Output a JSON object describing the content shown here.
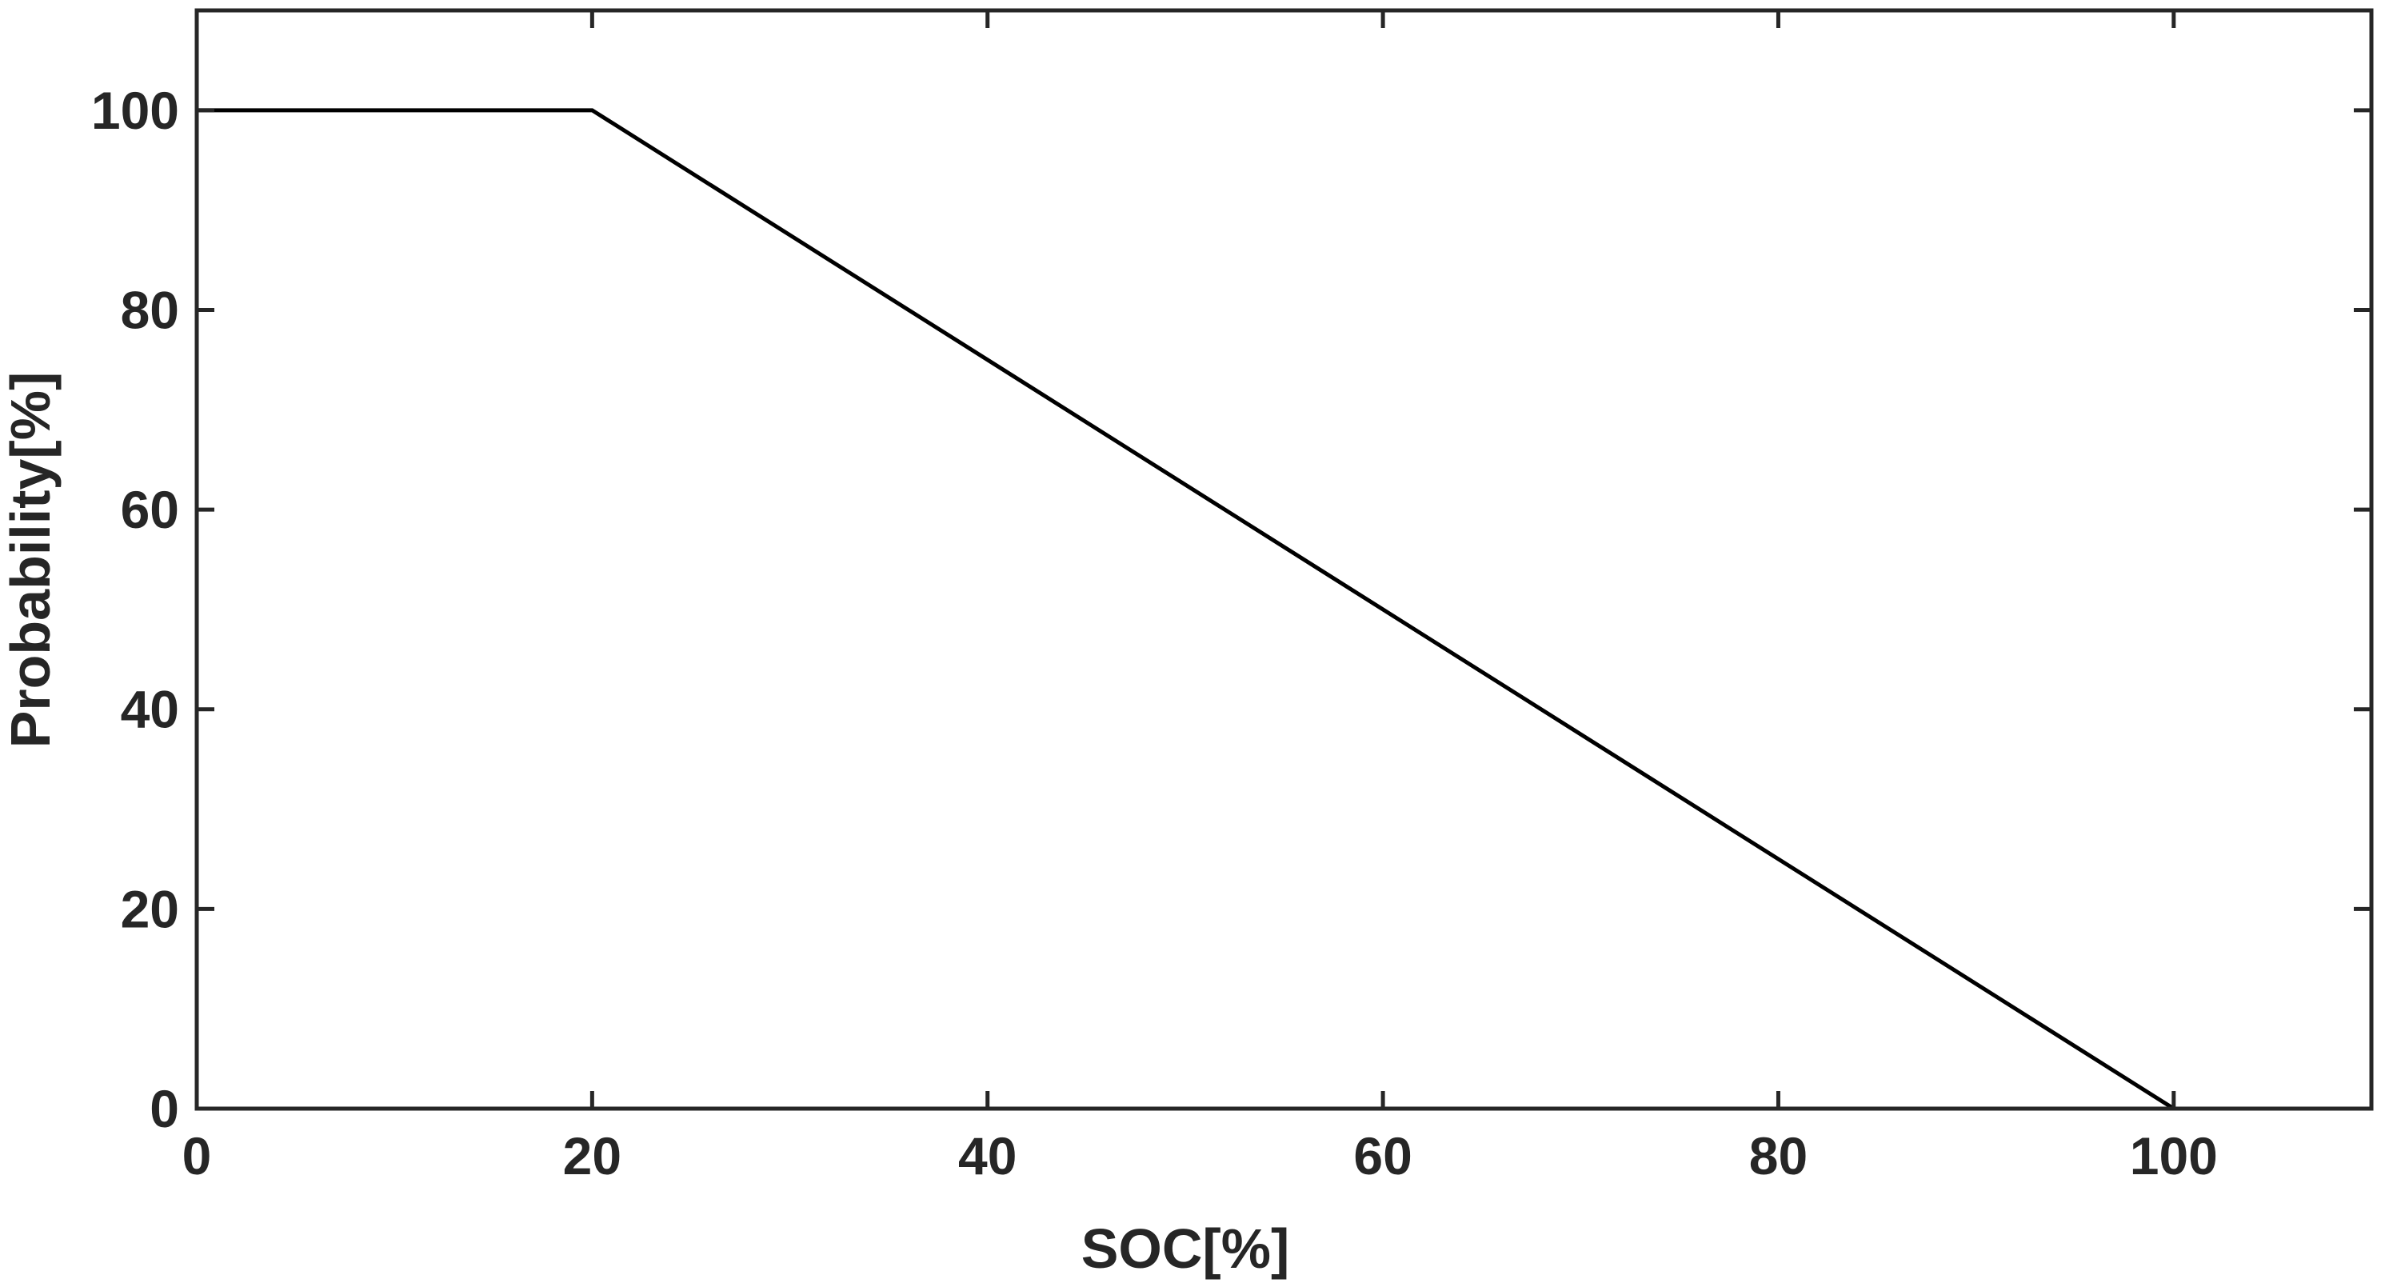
{
  "chart_data": {
    "type": "line",
    "title": "",
    "xlabel": "SOC[%]",
    "ylabel": "Probability[%]",
    "xlim": [
      0,
      110
    ],
    "ylim": [
      0,
      110
    ],
    "xticks": [
      0,
      20,
      40,
      60,
      80,
      100
    ],
    "yticks": [
      0,
      20,
      40,
      60,
      80,
      100
    ],
    "xtick_labels": [
      "0",
      "20",
      "40",
      "60",
      "80",
      "100"
    ],
    "ytick_labels": [
      "0",
      "20",
      "40",
      "60",
      "80",
      "100"
    ],
    "grid": false,
    "legend": "none",
    "series": [
      {
        "x": [
          0,
          20,
          100
        ],
        "y": [
          100,
          100,
          0
        ],
        "color": "#000000"
      }
    ],
    "colors": {
      "line": "#000000",
      "axes": "#262626",
      "text": "#262626",
      "background": "#ffffff"
    }
  }
}
